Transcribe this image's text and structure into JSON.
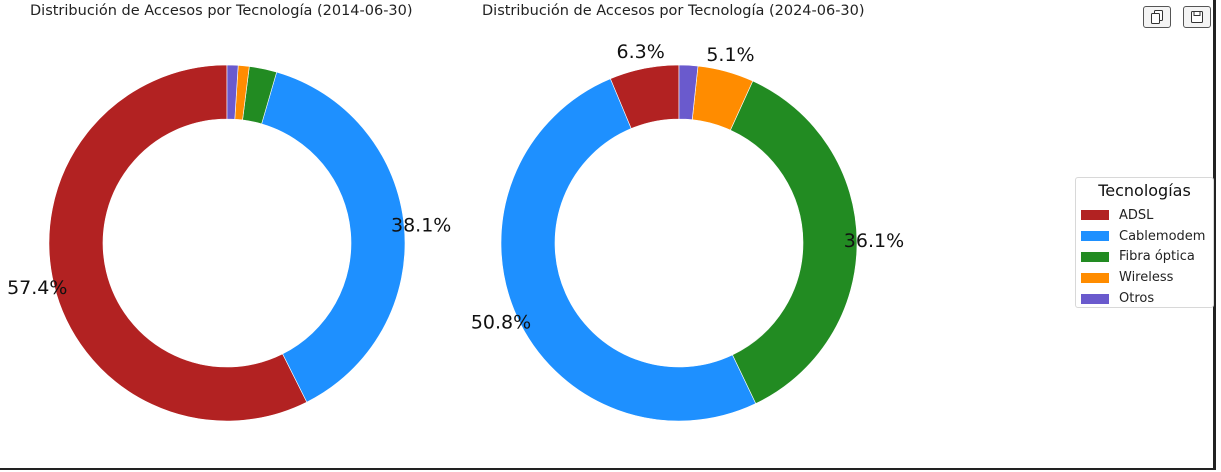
{
  "toolbar": {
    "copy_icon": "copy-icon",
    "save_icon": "save-icon"
  },
  "legend": {
    "title": "Tecnologías",
    "items": [
      {
        "label": "ADSL",
        "color": "#B22222"
      },
      {
        "label": "Cablemodem",
        "color": "#1E90FF"
      },
      {
        "label": "Fibra óptica",
        "color": "#228B22"
      },
      {
        "label": "Wireless",
        "color": "#FF8C00"
      },
      {
        "label": "Otros",
        "color": "#6A5ACD"
      }
    ]
  },
  "chart_data": [
    {
      "type": "pie",
      "title": "Distribución de Accesos por Tecnología (2014-06-30)",
      "categories": [
        "ADSL",
        "Cablemodem",
        "Fibra óptica",
        "Wireless",
        "Otros"
      ],
      "values": [
        57.4,
        38.1,
        2.5,
        1.0,
        1.0
      ],
      "labels": [
        "57.4%",
        "38.1%",
        "",
        "",
        ""
      ],
      "colors": [
        "#B22222",
        "#1E90FF",
        "#228B22",
        "#FF8C00",
        "#6A5ACD"
      ],
      "donut": true,
      "start": "top",
      "direction": "counterclockwise",
      "legend": "right"
    },
    {
      "type": "pie",
      "title": "Distribución de Accesos por Tecnología (2024-06-30)",
      "categories": [
        "ADSL",
        "Cablemodem",
        "Fibra óptica",
        "Wireless",
        "Otros"
      ],
      "values": [
        6.3,
        50.8,
        36.1,
        5.1,
        1.7
      ],
      "labels": [
        "6.3%",
        "50.8%",
        "36.1%",
        "5.1%",
        ""
      ],
      "colors": [
        "#B22222",
        "#1E90FF",
        "#228B22",
        "#FF8C00",
        "#6A5ACD"
      ],
      "donut": true,
      "start": "top",
      "direction": "counterclockwise",
      "legend": "right"
    }
  ]
}
